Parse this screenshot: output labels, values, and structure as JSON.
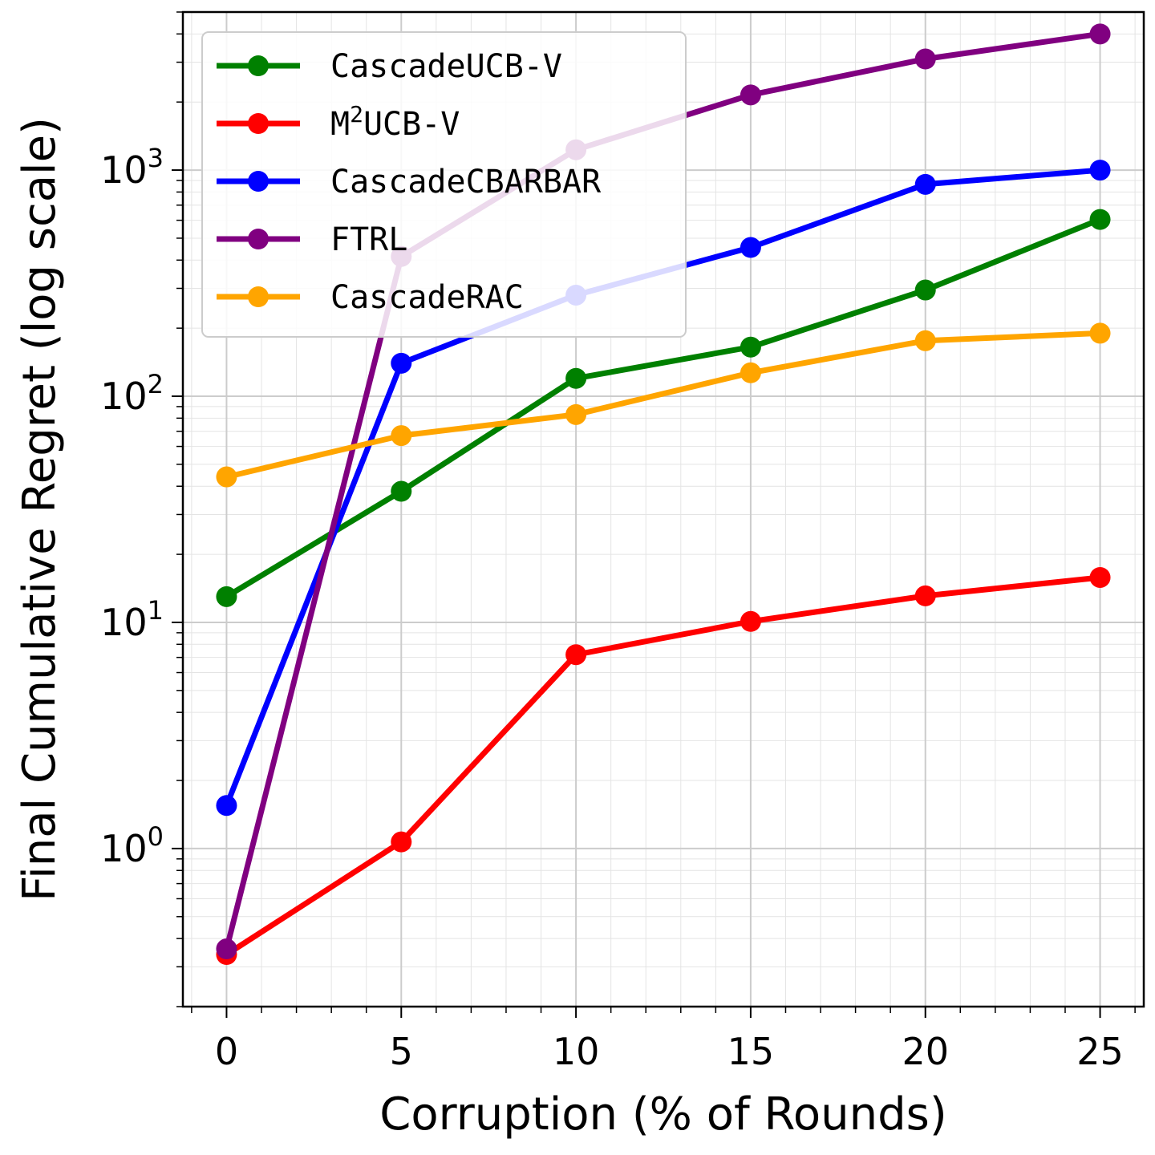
{
  "chart_data": {
    "type": "line",
    "title": "",
    "xlabel": "Corruption (% of Rounds)",
    "ylabel": "Final Cumulative Regret (log scale)",
    "yscale": "log",
    "x": [
      0,
      5,
      10,
      15,
      20,
      25
    ],
    "xlim": [
      -1.25,
      26.25
    ],
    "ylim": [
      0.2,
      5000
    ],
    "xticks": [
      "0",
      "5",
      "10",
      "15",
      "20",
      "25"
    ],
    "yticks": [
      {
        "value": 1,
        "base": "10",
        "exp": "0"
      },
      {
        "value": 10,
        "base": "10",
        "exp": "1"
      },
      {
        "value": 100,
        "base": "10",
        "exp": "2"
      },
      {
        "value": 1000,
        "base": "10",
        "exp": "3"
      }
    ],
    "grid": true,
    "legend_position": "top-left",
    "series": [
      {
        "name": "CascadeUCB-V",
        "color": "#008000",
        "values": [
          13,
          38,
          120,
          165,
          295,
          605
        ]
      },
      {
        "name": "M2UCB-V",
        "label_base": "M",
        "label_sup": "2",
        "label_rest": "UCB-V",
        "color": "#ff0000",
        "values": [
          0.34,
          1.07,
          7.2,
          10.1,
          13.1,
          15.8
        ]
      },
      {
        "name": "CascadeCBARBAR",
        "color": "#0000ff",
        "values": [
          1.55,
          140,
          280,
          455,
          865,
          1000
        ]
      },
      {
        "name": "FTRL",
        "color": "#800080",
        "values": [
          0.36,
          415,
          1230,
          2150,
          3100,
          4000
        ]
      },
      {
        "name": "CascadeRAC",
        "color": "#ffa500",
        "values": [
          44,
          67,
          83,
          127,
          176,
          190
        ]
      }
    ]
  }
}
